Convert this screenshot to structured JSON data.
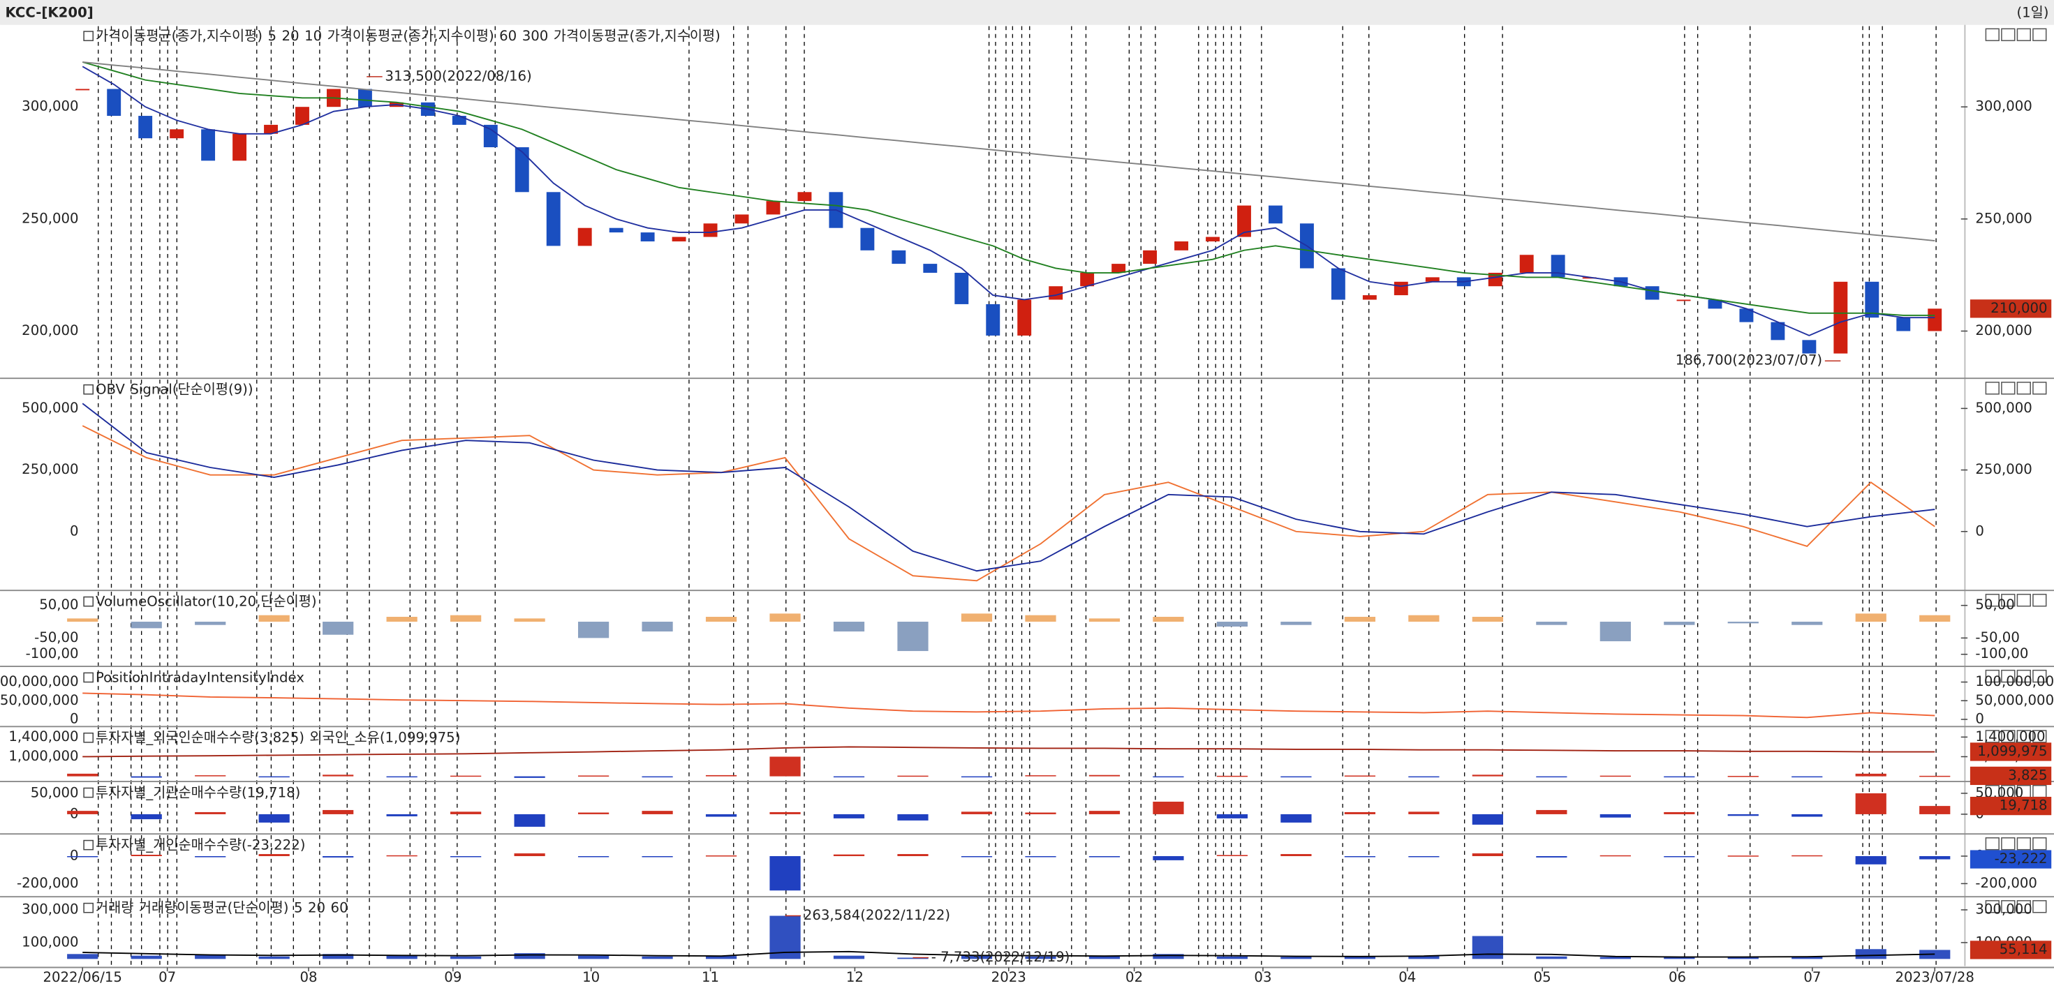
{
  "header": {
    "title": "KCC-[K200]",
    "period": "(1일)"
  },
  "chart_data": [
    {
      "type": "candlestick",
      "xlim": [
        0,
        59
      ],
      "ylim": [
        179500,
        336000
      ],
      "xticks": [
        {
          "value": 0,
          "label": "2022/06/15"
        },
        {
          "value": 2.7,
          "label": "07"
        },
        {
          "value": 7.2,
          "label": "08"
        },
        {
          "value": 11.8,
          "label": "09"
        },
        {
          "value": 16.2,
          "label": "10"
        },
        {
          "value": 20.0,
          "label": "11"
        },
        {
          "value": 24.6,
          "label": "12"
        },
        {
          "value": 29.5,
          "label": "2023"
        },
        {
          "value": 33.5,
          "label": "02"
        },
        {
          "value": 37.6,
          "label": "03"
        },
        {
          "value": 42.2,
          "label": "04"
        },
        {
          "value": 46.5,
          "label": "05"
        },
        {
          "value": 50.8,
          "label": "06"
        },
        {
          "value": 55.1,
          "label": "07"
        },
        {
          "value": 59,
          "label": "2023/07/28"
        }
      ],
      "yticks": [
        {
          "value": 300000,
          "label": "300,000"
        },
        {
          "value": 250000,
          "label": "250,000"
        },
        {
          "value": 200000,
          "label": "200,000"
        }
      ],
      "legend": [
        {
          "text": "가격이동평균(종가,지수이평)",
          "color": "#000000"
        },
        {
          "text": "5",
          "color": "#e03020"
        },
        {
          "text": "20",
          "color": "#2030c0"
        },
        {
          "text": "10",
          "color": "#f08040"
        },
        {
          "text": "가격이동평균(종가,지수이평)",
          "color": "#000000"
        },
        {
          "text": "60",
          "color": "#208020"
        },
        {
          "text": "300",
          "color": "#808080"
        },
        {
          "text": "가격이동평균(종가,지수이평)",
          "color": "#000000"
        }
      ],
      "series": [
        {
          "style": "candle",
          "color": "#d02010",
          "neg_color": "#1a4fc0",
          "values": [
            308000,
            296000,
            286000,
            290000,
            276000,
            288000,
            292000,
            300000,
            308000,
            300000,
            302000,
            296000,
            292000,
            282000,
            262000,
            238000,
            246000,
            244000,
            240000,
            242000,
            248000,
            252000,
            258000,
            262000,
            246000,
            236000,
            230000,
            226000,
            212000,
            198000,
            214000,
            220000,
            226000,
            230000,
            236000,
            240000,
            242000,
            256000,
            248000,
            228000,
            214000,
            216000,
            222000,
            224000,
            220000,
            226000,
            234000,
            224000,
            224000,
            220000,
            214000,
            214000,
            210000,
            204000,
            196000,
            190000,
            222000,
            206000,
            200000,
            210000
          ]
        },
        {
          "style": "line",
          "color": "#2030a0",
          "values": [
            318000,
            310000,
            300000,
            294000,
            290000,
            288000,
            288000,
            292000,
            298000,
            300000,
            301000,
            299000,
            296000,
            290000,
            280000,
            266000,
            256000,
            250000,
            246000,
            244000,
            244000,
            246000,
            250000,
            254000,
            254000,
            248000,
            242000,
            236000,
            228000,
            216000,
            214000,
            216000,
            220000,
            224000,
            228000,
            232000,
            236000,
            244000,
            246000,
            238000,
            228000,
            222000,
            220000,
            222000,
            222000,
            224000,
            226000,
            226000,
            224000,
            222000,
            218000,
            216000,
            214000,
            210000,
            204000,
            198000,
            204000,
            208000,
            206000,
            206000
          ]
        },
        {
          "style": "line",
          "color": "#208020",
          "values": [
            320000,
            316000,
            312000,
            310000,
            308000,
            306000,
            305000,
            304000,
            304000,
            303000,
            302000,
            300000,
            298000,
            294000,
            290000,
            284000,
            278000,
            272000,
            268000,
            264000,
            262000,
            260000,
            258000,
            257000,
            256000,
            254000,
            250000,
            246000,
            242000,
            238000,
            232000,
            228000,
            226000,
            226000,
            228000,
            230000,
            232000,
            236000,
            238000,
            236000,
            234000,
            232000,
            230000,
            228000,
            226000,
            225000,
            224000,
            224000,
            222000,
            220000,
            218000,
            216000,
            214000,
            212000,
            210000,
            208000,
            208000,
            208000,
            207000,
            207000
          ]
        },
        {
          "style": "line",
          "color": "#808080",
          "values": [
            320000,
            318600,
            317300,
            315900,
            314600,
            313200,
            311900,
            310500,
            309200,
            307800,
            306500,
            305100,
            303800,
            302400,
            301100,
            299700,
            298400,
            297000,
            295700,
            294300,
            293000,
            291600,
            290300,
            288900,
            287600,
            286200,
            284900,
            283500,
            282200,
            280800,
            279500,
            278100,
            276800,
            275400,
            274100,
            272700,
            271400,
            270000,
            268700,
            267300,
            266000,
            264600,
            263300,
            261900,
            260600,
            259200,
            257900,
            256500,
            255200,
            253800,
            252500,
            251100,
            249800,
            248400,
            247100,
            245700,
            244400,
            243000,
            241700,
            240300
          ]
        }
      ],
      "annotations": [
        {
          "text": "313,500(2022/08/16)",
          "x": 9.05,
          "value": 313500
        },
        {
          "text": "186,700(2023/07/07)",
          "x": 56.0,
          "value": 186700
        }
      ],
      "tags": [
        {
          "label": "210,000",
          "value": 210000,
          "color": "#c83018"
        }
      ]
    },
    {
      "type": "line",
      "xlim": [
        0,
        29
      ],
      "ylim": [
        -234000,
        617000
      ],
      "yticks": [
        {
          "value": 500000,
          "label": "500,000"
        },
        {
          "value": 250000,
          "label": "250,000"
        },
        0
      ],
      "legend": [
        {
          "text": "OBV",
          "color": "#f07030"
        },
        {
          "text": "Signal(단순이평(9))",
          "color": "#1a2a9a"
        }
      ],
      "series": [
        {
          "style": "line",
          "color": "#f07030",
          "values": [
            430000,
            300000,
            230000,
            230000,
            300000,
            370000,
            380000,
            390000,
            250000,
            230000,
            240000,
            300000,
            -30000,
            -180000,
            -200000,
            -50000,
            150000,
            200000,
            100000,
            0,
            -20000,
            0,
            150000,
            160000,
            120000,
            80000,
            20000,
            -60000,
            200000,
            20000
          ]
        },
        {
          "style": "line",
          "color": "#1a2a9a",
          "values": [
            520000,
            320000,
            260000,
            220000,
            270000,
            330000,
            370000,
            360000,
            290000,
            250000,
            240000,
            260000,
            100000,
            -80000,
            -160000,
            -120000,
            20000,
            150000,
            140000,
            50000,
            0,
            -10000,
            80000,
            160000,
            150000,
            110000,
            70000,
            20000,
            60000,
            90000
          ]
        }
      ]
    },
    {
      "type": "bar",
      "xlim": [
        0,
        29
      ],
      "ylim": [
        -133,
        92
      ],
      "yticks": [
        {
          "value": 50,
          "label": "50,00"
        },
        {
          "value": -50,
          "label": "-50,00"
        },
        {
          "value": -100,
          "label": "-100,00"
        }
      ],
      "legend": [
        {
          "text": "VolumeOscillator(10,20,단순이평)",
          "color": "#000000"
        }
      ],
      "series": [
        {
          "style": "bar",
          "color": "#f0b070",
          "neg_color": "#8aa0c0",
          "values": [
            10,
            -20,
            -10,
            20,
            -40,
            15,
            20,
            10,
            -50,
            -30,
            15,
            25,
            -30,
            -90,
            25,
            20,
            10,
            15,
            -15,
            -10,
            15,
            20,
            15,
            -10,
            -60,
            -10,
            -5,
            -10,
            25,
            20
          ]
        }
      ]
    },
    {
      "type": "line",
      "xlim": [
        0,
        29
      ],
      "ylim": [
        -15800000,
        138600000
      ],
      "yticks": [
        {
          "value": 100000000,
          "label": "100,000,000"
        },
        {
          "value": 50000000,
          "label": "50,000,000"
        },
        0
      ],
      "legend": [
        {
          "text": "PositionIntradayIntensityIndex",
          "color": "#f06030"
        }
      ],
      "series": [
        {
          "style": "line",
          "color": "#f06030",
          "values": [
            70000000,
            66000000,
            60000000,
            58000000,
            55000000,
            52000000,
            50000000,
            48000000,
            45000000,
            42000000,
            40000000,
            42000000,
            30000000,
            22000000,
            20000000,
            22000000,
            28000000,
            30000000,
            26000000,
            22000000,
            20000000,
            18000000,
            22000000,
            18000000,
            14000000,
            12000000,
            10000000,
            5000000,
            18000000,
            10000000
          ]
        }
      ]
    },
    {
      "type": "line",
      "xlim": [
        0,
        29
      ],
      "ylim": [
        520000,
        1587000
      ],
      "y2lim": [
        -30000,
        370000
      ],
      "yticks": [
        {
          "value": 1400000,
          "label": "1,400,000"
        },
        {
          "value": 1000000,
          "label": "1,000,000"
        }
      ],
      "legend": [
        {
          "text": "투자자별_외국인순매수수량(3,825)",
          "color": "#000000"
        },
        {
          "text": "외국인_소유(1,099,975)",
          "color": "#a02010"
        }
      ],
      "series": [
        {
          "style": "line",
          "color": "#a02010",
          "values": [
            1000000,
            1010000,
            1020000,
            1030000,
            1040000,
            1050000,
            1060000,
            1080000,
            1100000,
            1120000,
            1140000,
            1180000,
            1200000,
            1190000,
            1180000,
            1170000,
            1170000,
            1160000,
            1160000,
            1150000,
            1150000,
            1140000,
            1140000,
            1130000,
            1120000,
            1120000,
            1110000,
            1110000,
            1100000,
            1099975
          ]
        },
        {
          "style": "bar",
          "axis": "y2",
          "color": "#d03020",
          "neg_color": "#2040c0",
          "values": [
            20000,
            -10000,
            8000,
            -6000,
            12000,
            -8000,
            5000,
            -12000,
            6000,
            -4000,
            9000,
            150000,
            -7000,
            5000,
            -6000,
            8000,
            10000,
            -5000,
            4000,
            -8000,
            6000,
            -3000,
            12000,
            -6000,
            5000,
            -4000,
            3000,
            -5000,
            20000,
            3825
          ]
        }
      ],
      "tags": [
        {
          "label": "1,099,975",
          "value": 1099975,
          "color": "#c83018"
        },
        {
          "label": "3,825",
          "value": 3825,
          "axis": "y2",
          "color": "#c83018"
        }
      ]
    },
    {
      "type": "bar",
      "xlim": [
        0,
        29
      ],
      "ylim": [
        -44000,
        75000
      ],
      "yticks": [
        {
          "value": 50000,
          "label": "50,000"
        },
        0
      ],
      "legend": [
        {
          "text": "투자자별_기관순매수수량(19,718)",
          "color": "#40a040"
        }
      ],
      "series": [
        {
          "style": "bar",
          "color": "#d03020",
          "neg_color": "#2040c0",
          "values": [
            8000,
            -12000,
            5000,
            -20000,
            10000,
            -5000,
            6000,
            -30000,
            4000,
            8000,
            -6000,
            5000,
            -10000,
            -15000,
            6000,
            4000,
            8000,
            30000,
            -10000,
            -20000,
            5000,
            6000,
            -25000,
            10000,
            -8000,
            5000,
            -4000,
            -6000,
            50000,
            19718
          ]
        }
      ],
      "tags": [
        {
          "label": "19,718",
          "value": 19718,
          "color": "#c83018"
        }
      ]
    },
    {
      "type": "bar",
      "xlim": [
        0,
        29
      ],
      "ylim": [
        -286000,
        152000
      ],
      "yticks": [
        0,
        {
          "value": -200000,
          "label": "-200,000"
        }
      ],
      "legend": [
        {
          "text": "투자자별_개인순매수수량(-23,222)",
          "color": "#40a040"
        }
      ],
      "series": [
        {
          "style": "bar",
          "color": "#d03020",
          "neg_color": "#2040c0",
          "values": [
            -5000,
            10000,
            -8000,
            15000,
            -10000,
            6000,
            -5000,
            20000,
            -4000,
            -6000,
            5000,
            -250000,
            12000,
            15000,
            -6000,
            -5000,
            -8000,
            -30000,
            8000,
            15000,
            -5000,
            -6000,
            20000,
            -10000,
            6000,
            -5000,
            4000,
            6000,
            -60000,
            -23222
          ]
        }
      ],
      "tags": [
        {
          "label": "-23,222",
          "value": -23222,
          "color": "#2050d0"
        }
      ]
    },
    {
      "type": "bar",
      "xlim": [
        0,
        29
      ],
      "ylim": [
        -44000,
        372000
      ],
      "yticks": [
        {
          "value": 300000,
          "label": "300,000"
        },
        {
          "value": 100000,
          "label": "100,000"
        }
      ],
      "legend": [
        {
          "text": "거래량",
          "color": "#000000"
        },
        {
          "text": "거래량이동평균(단순이평)",
          "color": "#000000"
        },
        {
          "text": "5",
          "color": "#e03020"
        },
        {
          "text": "20",
          "color": "#208020"
        },
        {
          "text": "60",
          "color": "#808020"
        }
      ],
      "series": [
        {
          "style": "bar",
          "color": "#3050c0",
          "values": [
            30000,
            20000,
            25000,
            15000,
            30000,
            20000,
            15000,
            35000,
            20000,
            15000,
            18000,
            263584,
            20000,
            7733,
            25000,
            15000,
            18000,
            30000,
            15000,
            12000,
            14000,
            20000,
            140000,
            15000,
            12000,
            10000,
            12000,
            15000,
            60000,
            55114
          ]
        },
        {
          "style": "line",
          "color": "#000000",
          "values": [
            40000,
            32000,
            25000,
            22000,
            24000,
            22000,
            20000,
            25000,
            24000,
            20000,
            18000,
            40000,
            45000,
            30000,
            22000,
            20000,
            18000,
            22000,
            20000,
            16000,
            15000,
            18000,
            30000,
            28000,
            15000,
            12000,
            12000,
            14000,
            22000,
            30000
          ]
        }
      ],
      "annotations": [
        {
          "text": "263,584(2022/11/22)",
          "x": 11,
          "value": 263584
        },
        {
          "text": "- 7,733(2022/12/19)",
          "x": 13,
          "value": 7733
        }
      ],
      "tags": [
        {
          "label": "55,114",
          "value": 55114,
          "color": "#c83018"
        }
      ]
    }
  ]
}
